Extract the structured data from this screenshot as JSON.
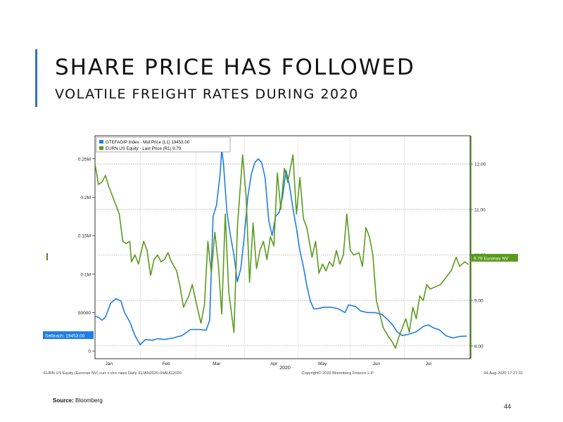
{
  "slide": {
    "title": "SHARE PRICE HAS FOLLOWED",
    "subtitle": "VOLATILE FREIGHT RATES DURING 2020",
    "source_label": "Source:",
    "source_value": "Bloomberg",
    "page_number": "44"
  },
  "chart_data": {
    "type": "line",
    "x_range": [
      "2020-01-01",
      "2020-08-04"
    ],
    "x_ticks": [
      {
        "label": "Jan",
        "date": "2020-01-09"
      },
      {
        "label": "Feb",
        "date": "2020-02-11"
      },
      {
        "label": "Mar",
        "date": "2020-03-11"
      },
      {
        "label": "Apr",
        "date": "2020-04-13"
      },
      {
        "label": "May",
        "date": "2020-05-11"
      },
      {
        "label": "Jun",
        "date": "2020-06-11"
      },
      {
        "label": "Jul",
        "date": "2020-07-11"
      }
    ],
    "x_year_label": "2020",
    "y_left": {
      "range": [
        -10000,
        280000
      ],
      "ticks": [
        {
          "value": 0,
          "label": "0"
        },
        {
          "value": 50000,
          "label": "50000"
        },
        {
          "value": 100000,
          "label": "0.1M"
        },
        {
          "value": 150000,
          "label": "0.15M"
        },
        {
          "value": 200000,
          "label": "0.2M"
        },
        {
          "value": 250000,
          "label": "0.25M"
        }
      ],
      "last_value_label": "Selbrach: 19453.00"
    },
    "y_right": {
      "range": [
        7.72,
        12.62
      ],
      "ticks": [
        {
          "value": 8,
          "label": "8.00"
        },
        {
          "value": 9,
          "label": "9.00"
        },
        {
          "value": 10,
          "label": "10.00"
        },
        {
          "value": 11,
          "label": "11.00"
        },
        {
          "value": 12,
          "label": "12.00"
        }
      ],
      "last_value_label": "9.79 Euronav NV"
    },
    "grid": true,
    "legend_position": "top-left",
    "series": [
      {
        "name": "GTEFAGIP Index - Mid Price (L1) 19453.00",
        "axis": "left",
        "color": "#1f7ee6",
        "points": [
          [
            "2020-01-01",
            45000
          ],
          [
            "2020-01-03",
            44000
          ],
          [
            "2020-01-05",
            40000
          ],
          [
            "2020-01-07",
            44000
          ],
          [
            "2020-01-10",
            62000
          ],
          [
            "2020-01-13",
            68000
          ],
          [
            "2020-01-16",
            65000
          ],
          [
            "2020-01-18",
            50000
          ],
          [
            "2020-01-21",
            38000
          ],
          [
            "2020-01-24",
            20000
          ],
          [
            "2020-01-27",
            8000
          ],
          [
            "2020-01-30",
            15000
          ],
          [
            "2020-02-03",
            14000
          ],
          [
            "2020-02-06",
            16000
          ],
          [
            "2020-02-10",
            15000
          ],
          [
            "2020-02-15",
            17000
          ],
          [
            "2020-02-20",
            20000
          ],
          [
            "2020-02-25",
            28000
          ],
          [
            "2020-03-01",
            28000
          ],
          [
            "2020-03-05",
            27000
          ],
          [
            "2020-03-07",
            40000
          ],
          [
            "2020-03-09",
            175000
          ],
          [
            "2020-03-11",
            190000
          ],
          [
            "2020-03-13",
            230000
          ],
          [
            "2020-03-14",
            262000
          ],
          [
            "2020-03-15",
            243000
          ],
          [
            "2020-03-17",
            180000
          ],
          [
            "2020-03-19",
            150000
          ],
          [
            "2020-03-21",
            125000
          ],
          [
            "2020-03-23",
            90000
          ],
          [
            "2020-03-25",
            108000
          ],
          [
            "2020-03-27",
            150000
          ],
          [
            "2020-03-29",
            200000
          ],
          [
            "2020-03-31",
            230000
          ],
          [
            "2020-04-02",
            245000
          ],
          [
            "2020-04-04",
            250000
          ],
          [
            "2020-04-06",
            245000
          ],
          [
            "2020-04-08",
            225000
          ],
          [
            "2020-04-10",
            170000
          ],
          [
            "2020-04-12",
            150000
          ],
          [
            "2020-04-14",
            175000
          ],
          [
            "2020-04-16",
            180000
          ],
          [
            "2020-04-18",
            200000
          ],
          [
            "2020-04-20",
            235000
          ],
          [
            "2020-04-22",
            215000
          ],
          [
            "2020-04-24",
            185000
          ],
          [
            "2020-04-26",
            160000
          ],
          [
            "2020-04-28",
            130000
          ],
          [
            "2020-04-30",
            110000
          ],
          [
            "2020-05-02",
            85000
          ],
          [
            "2020-05-04",
            65000
          ],
          [
            "2020-05-06",
            55000
          ],
          [
            "2020-05-08",
            55000
          ],
          [
            "2020-05-12",
            57000
          ],
          [
            "2020-05-16",
            57000
          ],
          [
            "2020-05-20",
            55000
          ],
          [
            "2020-05-24",
            50000
          ],
          [
            "2020-05-26",
            60000
          ],
          [
            "2020-05-30",
            58000
          ],
          [
            "2020-06-02",
            52000
          ],
          [
            "2020-06-06",
            50000
          ],
          [
            "2020-06-10",
            50000
          ],
          [
            "2020-06-14",
            48000
          ],
          [
            "2020-06-17",
            42000
          ],
          [
            "2020-06-20",
            35000
          ],
          [
            "2020-06-23",
            25000
          ],
          [
            "2020-06-26",
            20000
          ],
          [
            "2020-06-30",
            22000
          ],
          [
            "2020-07-04",
            25000
          ],
          [
            "2020-07-08",
            32000
          ],
          [
            "2020-07-11",
            34000
          ],
          [
            "2020-07-14",
            30000
          ],
          [
            "2020-07-17",
            28000
          ],
          [
            "2020-07-21",
            20000
          ],
          [
            "2020-07-25",
            17000
          ],
          [
            "2020-07-29",
            19000
          ],
          [
            "2020-08-02",
            19453
          ]
        ]
      },
      {
        "name": "EURN US Equity - Last Price (R1) 9.79",
        "axis": "right",
        "color": "#5a9a1e",
        "points": [
          [
            "2020-01-01",
            12.0
          ],
          [
            "2020-01-03",
            11.55
          ],
          [
            "2020-01-05",
            11.6
          ],
          [
            "2020-01-07",
            11.75
          ],
          [
            "2020-01-09",
            11.5
          ],
          [
            "2020-01-11",
            11.3
          ],
          [
            "2020-01-13",
            11.1
          ],
          [
            "2020-01-15",
            10.9
          ],
          [
            "2020-01-17",
            10.3
          ],
          [
            "2020-01-19",
            10.25
          ],
          [
            "2020-01-21",
            10.3
          ],
          [
            "2020-01-22",
            9.85
          ],
          [
            "2020-01-24",
            10.0
          ],
          [
            "2020-01-26",
            9.8
          ],
          [
            "2020-01-29",
            10.3
          ],
          [
            "2020-01-31",
            10.1
          ],
          [
            "2020-02-02",
            9.55
          ],
          [
            "2020-02-04",
            9.9
          ],
          [
            "2020-02-06",
            10.0
          ],
          [
            "2020-02-08",
            9.85
          ],
          [
            "2020-02-10",
            9.9
          ],
          [
            "2020-02-12",
            10.05
          ],
          [
            "2020-02-14",
            9.85
          ],
          [
            "2020-02-17",
            9.65
          ],
          [
            "2020-02-19",
            9.3
          ],
          [
            "2020-02-21",
            8.85
          ],
          [
            "2020-02-24",
            9.1
          ],
          [
            "2020-02-26",
            9.35
          ],
          [
            "2020-02-28",
            9.0
          ],
          [
            "2020-03-02",
            8.5
          ],
          [
            "2020-03-04",
            8.9
          ],
          [
            "2020-03-06",
            10.3
          ],
          [
            "2020-03-08",
            9.6
          ],
          [
            "2020-03-10",
            10.5
          ],
          [
            "2020-03-12",
            9.8
          ],
          [
            "2020-03-14",
            8.7
          ],
          [
            "2020-03-16",
            10.9
          ],
          [
            "2020-03-18",
            9.2
          ],
          [
            "2020-03-21",
            8.3
          ],
          [
            "2020-03-23",
            10.6
          ],
          [
            "2020-03-26",
            12.2
          ],
          [
            "2020-03-28",
            11.3
          ],
          [
            "2020-03-30",
            9.4
          ],
          [
            "2020-04-01",
            10.7
          ],
          [
            "2020-04-03",
            9.7
          ],
          [
            "2020-04-05",
            10.1
          ],
          [
            "2020-04-07",
            10.3
          ],
          [
            "2020-04-09",
            9.9
          ],
          [
            "2020-04-11",
            10.4
          ],
          [
            "2020-04-13",
            10.2
          ],
          [
            "2020-04-15",
            11.8
          ],
          [
            "2020-04-17",
            11.0
          ],
          [
            "2020-04-19",
            11.9
          ],
          [
            "2020-04-21",
            11.6
          ],
          [
            "2020-04-24",
            12.2
          ],
          [
            "2020-04-26",
            10.9
          ],
          [
            "2020-04-28",
            11.7
          ],
          [
            "2020-04-30",
            10.8
          ],
          [
            "2020-05-02",
            10.6
          ],
          [
            "2020-05-05",
            9.95
          ],
          [
            "2020-05-07",
            10.3
          ],
          [
            "2020-05-09",
            9.6
          ],
          [
            "2020-05-11",
            9.8
          ],
          [
            "2020-05-13",
            9.65
          ],
          [
            "2020-05-15",
            9.85
          ],
          [
            "2020-05-17",
            9.75
          ],
          [
            "2020-05-19",
            10.1
          ],
          [
            "2020-05-21",
            9.8
          ],
          [
            "2020-05-23",
            10.0
          ],
          [
            "2020-05-25",
            10.9
          ],
          [
            "2020-05-27",
            10.1
          ],
          [
            "2020-05-29",
            10.0
          ],
          [
            "2020-06-01",
            10.05
          ],
          [
            "2020-06-03",
            9.75
          ],
          [
            "2020-06-05",
            10.6
          ],
          [
            "2020-06-07",
            10.4
          ],
          [
            "2020-06-09",
            10.0
          ],
          [
            "2020-06-11",
            9.0
          ],
          [
            "2020-06-13",
            8.7
          ],
          [
            "2020-06-15",
            8.4
          ],
          [
            "2020-06-18",
            8.2
          ],
          [
            "2020-06-20",
            8.1
          ],
          [
            "2020-06-22",
            7.95
          ],
          [
            "2020-06-24",
            8.2
          ],
          [
            "2020-06-26",
            8.4
          ],
          [
            "2020-06-28",
            8.6
          ],
          [
            "2020-06-30",
            8.3
          ],
          [
            "2020-07-02",
            8.85
          ],
          [
            "2020-07-04",
            8.6
          ],
          [
            "2020-07-06",
            9.1
          ],
          [
            "2020-07-08",
            9.0
          ],
          [
            "2020-07-10",
            9.35
          ],
          [
            "2020-07-12",
            9.25
          ],
          [
            "2020-07-15",
            9.3
          ],
          [
            "2020-07-18",
            9.35
          ],
          [
            "2020-07-21",
            9.5
          ],
          [
            "2020-07-24",
            9.65
          ],
          [
            "2020-07-27",
            9.95
          ],
          [
            "2020-07-29",
            9.75
          ],
          [
            "2020-08-01",
            9.85
          ],
          [
            "2020-08-03",
            9.79
          ]
        ]
      }
    ],
    "footer_left": "EURN US Equity (Euronav NV) curr v vlcc rates  Daily 31JAN2020-04AUG2020",
    "footer_center": "Copyright© 2020 Bloomberg Finance L.P.",
    "footer_right": "04-Aug-2020 17:27:31"
  },
  "colors": {
    "accent": "#2e74b5",
    "left_axis_label_bg": "#1f7ee6",
    "right_axis_label_bg": "#5a9a1e",
    "right_axis": "#4a8a18"
  }
}
